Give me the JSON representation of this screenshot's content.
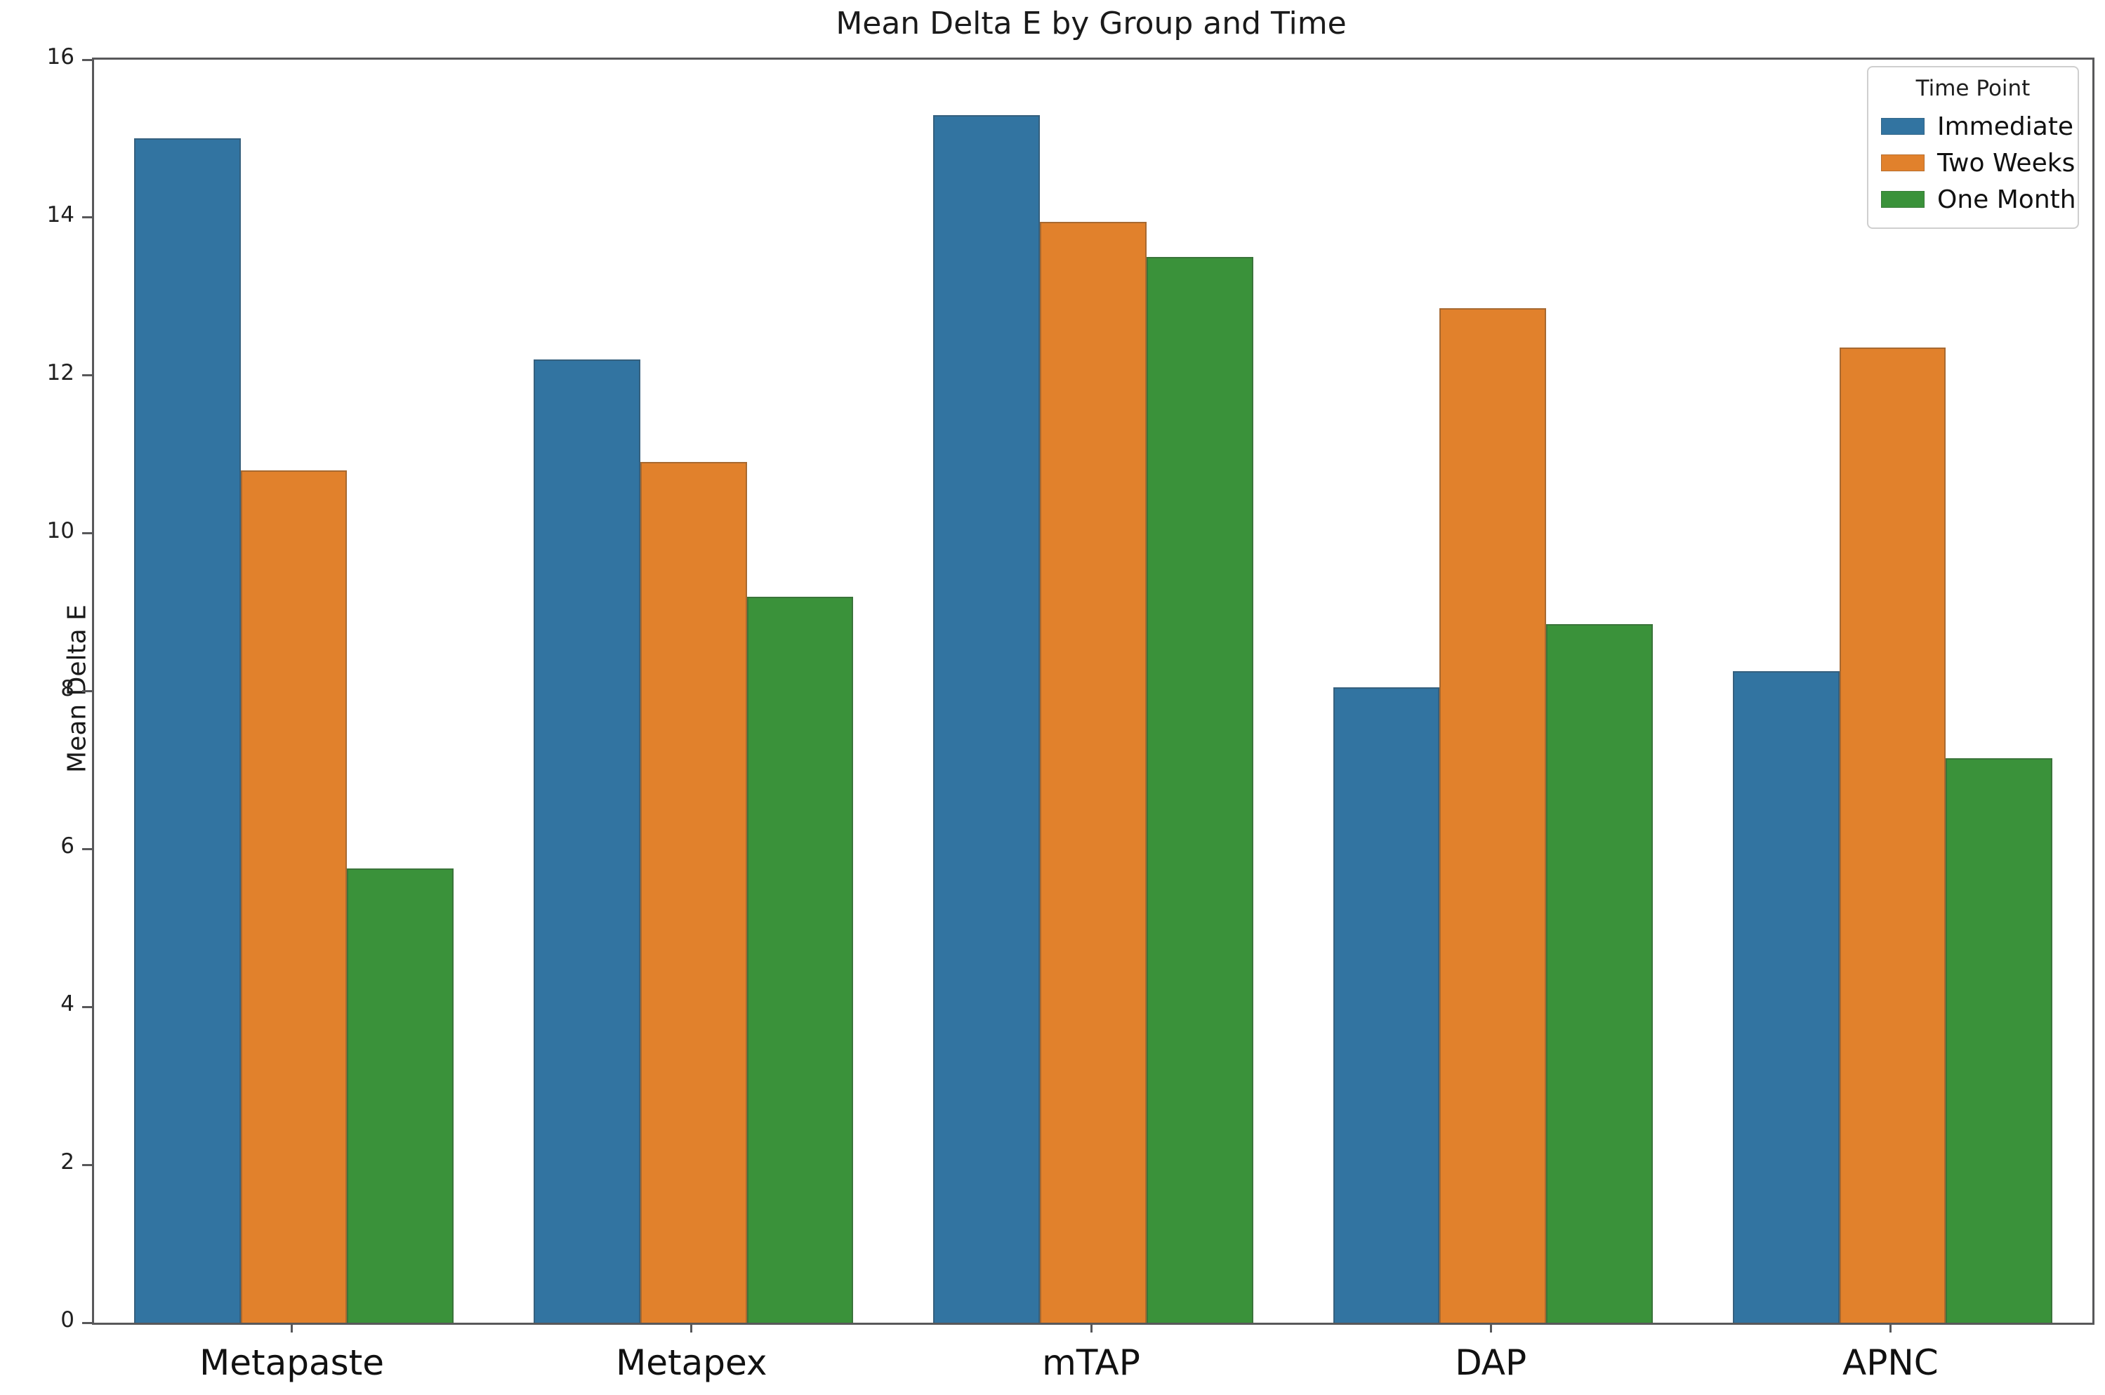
{
  "title": "Mean Delta E by Group and Time",
  "ylabel": "Mean Delta E",
  "legend": {
    "title": "Time Point",
    "items": [
      {
        "label": "Immediate",
        "color": "#3274a1"
      },
      {
        "label": "Two Weeks",
        "color": "#e1812c"
      },
      {
        "label": "One Month",
        "color": "#3a923a"
      }
    ]
  },
  "chart_data": {
    "type": "bar",
    "title": "Mean Delta E by Group and Time",
    "xlabel": "",
    "ylabel": "Mean Delta E",
    "categories": [
      "Metapaste",
      "Metapex",
      "mTAP",
      "DAP",
      "APNC"
    ],
    "series": [
      {
        "name": "Immediate",
        "color": "#3274a1",
        "values": [
          15.0,
          12.2,
          15.3,
          8.05,
          8.25
        ]
      },
      {
        "name": "Two Weeks",
        "color": "#e1812c",
        "values": [
          10.8,
          10.9,
          13.95,
          12.85,
          12.35
        ]
      },
      {
        "name": "One Month",
        "color": "#3a923a",
        "values": [
          5.75,
          9.2,
          13.5,
          8.85,
          7.15
        ]
      }
    ],
    "ylim": [
      0,
      16
    ],
    "yticks": [
      0,
      2,
      4,
      6,
      8,
      10,
      12,
      14,
      16
    ],
    "group_width_fraction": 0.8,
    "grid": false,
    "legend_title": "Time Point",
    "legend_position": "upper right"
  }
}
